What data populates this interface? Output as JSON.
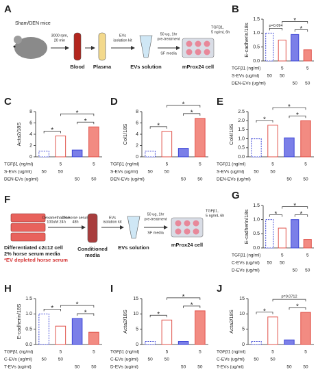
{
  "schematic_a": {
    "letter": "A",
    "mice": "Sham/DEN mice",
    "spin": [
      "3000 rpm,",
      "20 min"
    ],
    "kit": [
      "EVs",
      "isolation kit"
    ],
    "treat": [
      "50 ug, 1hr",
      "pre-treatment"
    ],
    "media": "SF media",
    "tgf": [
      "TGFβ1,",
      "5 ng/mL 6h"
    ],
    "blood": "Blood",
    "plasma": "Plasma",
    "evs": "EVs solution",
    "cell": "mProx24 cell"
  },
  "schematic_f": {
    "letter": "F",
    "cells": [
      "Differentiated c2c12 cell",
      "2% horse serum media"
    ],
    "note": "*EV depleted horse serum",
    "step1": [
      "Dexamethasone",
      "100uM 24h"
    ],
    "step2": [
      "2% horse serum",
      "48h"
    ],
    "cm": [
      "Conditioned",
      "media"
    ],
    "kit": [
      "EVs",
      "isolation kit"
    ],
    "evs": "EVs solution",
    "treat": [
      "50 ug, 1hr",
      "pre-treatment"
    ],
    "media": "SF media",
    "tgf": [
      "TGFβ1,",
      "5 ng/mL 6h"
    ],
    "cell": "mProx24 cell"
  },
  "chart_data": [
    {
      "type": "bar",
      "letter": "B",
      "ylabel": "E-cadherin/18s",
      "values": [
        1,
        0.75,
        0.95,
        0.4
      ],
      "colors": [
        "#ffffff",
        "#ffffff",
        "#7b7fe8",
        "#f28b82"
      ],
      "edges": [
        "#3b44d6",
        "#e0524a",
        "#3b44d6",
        "#e0524a"
      ],
      "ylim": [
        0,
        1.5
      ],
      "yticks": [
        {
          "value": 0,
          "label": "0.0"
        },
        {
          "value": 0.5,
          "label": "0.5"
        },
        {
          "value": 1,
          "label": "1.0"
        },
        {
          "value": 1.5,
          "label": "1.5"
        }
      ],
      "comparisons": [
        {
          "label": "p=0.094",
          "bars": [
            0,
            1
          ]
        },
        {
          "label": "*",
          "bars": [
            2,
            3
          ]
        },
        {
          "label": "*",
          "bars": [
            1,
            3
          ]
        }
      ],
      "conditions": [
        {
          "label": "TGFβ1 (ng/ml)",
          "values": [
            null,
            5,
            null,
            5
          ]
        },
        {
          "label": "S-EVs (ug/ml)",
          "values": [
            50,
            50,
            null,
            null
          ]
        },
        {
          "label": "DEN-EVs (ug/ml)",
          "values": [
            null,
            null,
            50,
            50
          ]
        }
      ]
    },
    {
      "type": "bar",
      "letter": "C",
      "ylabel": "Acta2/18S",
      "values": [
        1,
        3.7,
        1.2,
        5.3
      ],
      "colors": [
        "#ffffff",
        "#ffffff",
        "#7b7fe8",
        "#f28b82"
      ],
      "edges": [
        "#3b44d6",
        "#e0524a",
        "#3b44d6",
        "#e0524a"
      ],
      "ylim": [
        0,
        8
      ],
      "yticks": [
        0,
        2,
        4,
        6,
        8
      ],
      "comparisons": [
        {
          "label": "*",
          "bars": [
            0,
            1
          ]
        },
        {
          "label": "*",
          "bars": [
            2,
            3
          ]
        },
        {
          "label": "*",
          "bars": [
            1,
            3
          ]
        }
      ],
      "conditions": [
        {
          "label": "TGFβ1 (ng/ml)",
          "values": [
            null,
            5,
            null,
            5
          ]
        },
        {
          "label": "S-EVs (ug/ml)",
          "values": [
            50,
            50,
            null,
            null
          ]
        },
        {
          "label": "DEN-EVs (ug/ml)",
          "values": [
            null,
            null,
            50,
            50
          ]
        }
      ]
    },
    {
      "type": "bar",
      "letter": "D",
      "ylabel": "Col1/18S",
      "values": [
        1,
        4.5,
        1.5,
        6.8
      ],
      "colors": [
        "#ffffff",
        "#ffffff",
        "#7b7fe8",
        "#f28b82"
      ],
      "edges": [
        "#3b44d6",
        "#e0524a",
        "#3b44d6",
        "#e0524a"
      ],
      "ylim": [
        0,
        8
      ],
      "yticks": [
        0,
        2,
        4,
        6,
        8
      ],
      "comparisons": [
        {
          "label": "*",
          "bars": [
            0,
            1
          ]
        },
        {
          "label": "*",
          "bars": [
            2,
            3
          ]
        },
        {
          "label": "*",
          "bars": [
            1,
            3
          ]
        }
      ],
      "conditions": [
        {
          "label": "TGFβ1 (ng/ml)",
          "values": [
            null,
            5,
            null,
            5
          ]
        },
        {
          "label": "S-EVs (ug/ml)",
          "values": [
            50,
            50,
            null,
            null
          ]
        },
        {
          "label": "DEN-EVs (ug/ml)",
          "values": [
            null,
            null,
            50,
            50
          ]
        }
      ]
    },
    {
      "type": "bar",
      "letter": "E",
      "ylabel": "Col4/18S",
      "values": [
        1,
        1.75,
        1.05,
        2.0
      ],
      "colors": [
        "#ffffff",
        "#ffffff",
        "#7b7fe8",
        "#f28b82"
      ],
      "edges": [
        "#3b44d6",
        "#e0524a",
        "#3b44d6",
        "#e0524a"
      ],
      "ylim": [
        0,
        2.5
      ],
      "yticks": [
        {
          "value": 0,
          "label": "0.0"
        },
        {
          "value": 0.5,
          "label": "0.5"
        },
        {
          "value": 1,
          "label": "1.0"
        },
        {
          "value": 1.5,
          "label": "1.5"
        },
        {
          "value": 2,
          "label": "2.0"
        },
        {
          "value": 2.5,
          "label": "2.5"
        }
      ],
      "comparisons": [
        {
          "label": "*",
          "bars": [
            0,
            1
          ]
        },
        {
          "label": "*",
          "bars": [
            2,
            3
          ]
        },
        {
          "label": "*",
          "bars": [
            1,
            3
          ]
        }
      ],
      "conditions": [
        {
          "label": "TGFβ1 (ng/ml)",
          "values": [
            null,
            5,
            null,
            5
          ]
        },
        {
          "label": "S-EVs (ug/ml)",
          "values": [
            50,
            50,
            null,
            null
          ]
        },
        {
          "label": "DEN-EVs (ug/ml)",
          "values": [
            null,
            null,
            50,
            50
          ]
        }
      ]
    },
    {
      "type": "bar",
      "letter": "G",
      "ylabel": "E-cadherin/18s",
      "values": [
        1,
        0.7,
        1.0,
        0.3
      ],
      "colors": [
        "#ffffff",
        "#ffffff",
        "#7b7fe8",
        "#f28b82"
      ],
      "edges": [
        "#3b44d6",
        "#e0524a",
        "#3b44d6",
        "#e0524a"
      ],
      "ylim": [
        0,
        1.5
      ],
      "yticks": [
        {
          "value": 0,
          "label": "0.0"
        },
        {
          "value": 0.5,
          "label": "0.5"
        },
        {
          "value": 1,
          "label": "1.0"
        },
        {
          "value": 1.5,
          "label": "1.5"
        }
      ],
      "comparisons": [
        {
          "label": "*",
          "bars": [
            0,
            1
          ]
        },
        {
          "label": "*",
          "bars": [
            2,
            3
          ]
        },
        {
          "label": "*",
          "bars": [
            1,
            3
          ]
        }
      ],
      "conditions": [
        {
          "label": "TGFβ1 (ng/ml)",
          "values": [
            null,
            5,
            null,
            5
          ]
        },
        {
          "label": "C-EVs (ug/ml)",
          "values": [
            50,
            50,
            null,
            null
          ]
        },
        {
          "label": "D-EVs (ug/ml)",
          "values": [
            null,
            null,
            50,
            50
          ]
        }
      ]
    },
    {
      "type": "bar",
      "letter": "H",
      "ylabel": "E-cadherin/18S",
      "values": [
        1,
        0.6,
        0.85,
        0.4
      ],
      "colors": [
        "#ffffff",
        "#ffffff",
        "#7b7fe8",
        "#f28b82"
      ],
      "edges": [
        "#3b44d6",
        "#e0524a",
        "#3b44d6",
        "#e0524a"
      ],
      "ylim": [
        0,
        1.5
      ],
      "yticks": [
        {
          "value": 0,
          "label": "0.0"
        },
        {
          "value": 0.5,
          "label": "0.5"
        },
        {
          "value": 1,
          "label": "1.0"
        },
        {
          "value": 1.5,
          "label": "1.5"
        }
      ],
      "comparisons": [
        {
          "label": "*",
          "bars": [
            0,
            1
          ]
        },
        {
          "label": "*",
          "bars": [
            2,
            3
          ]
        },
        {
          "label": "*",
          "bars": [
            1,
            3
          ]
        }
      ],
      "conditions": [
        {
          "label": "TGFβ1 (ng/ml)",
          "values": [
            null,
            5,
            null,
            5
          ]
        },
        {
          "label": "C-EVs (ug/ml)",
          "values": [
            50,
            50,
            null,
            null
          ]
        },
        {
          "label": "T-EVs (ug/ml)",
          "values": [
            null,
            null,
            50,
            50
          ]
        }
      ]
    },
    {
      "type": "bar",
      "letter": "I",
      "ylabel": "Acta2/18S",
      "values": [
        1,
        8,
        1,
        11
      ],
      "colors": [
        "#ffffff",
        "#ffffff",
        "#7b7fe8",
        "#f28b82"
      ],
      "edges": [
        "#3b44d6",
        "#e0524a",
        "#3b44d6",
        "#e0524a"
      ],
      "ylim": [
        0,
        15
      ],
      "yticks": [
        0,
        5,
        10,
        15
      ],
      "comparisons": [
        {
          "label": "*",
          "bars": [
            0,
            1
          ]
        },
        {
          "label": "*",
          "bars": [
            2,
            3
          ]
        },
        {
          "label": "*",
          "bars": [
            1,
            3
          ]
        }
      ],
      "conditions": [
        {
          "label": "TGFβ1 (ng/ml)",
          "values": [
            null,
            5,
            null,
            5
          ]
        },
        {
          "label": "C-EVs (ug/ml)",
          "values": [
            50,
            50,
            null,
            null
          ]
        },
        {
          "label": "D-EVs (ug/ml)",
          "values": [
            null,
            null,
            50,
            50
          ]
        }
      ]
    },
    {
      "type": "bar",
      "letter": "J",
      "ylabel": "Acta2/18S",
      "values": [
        1,
        9,
        1.5,
        10.5
      ],
      "colors": [
        "#ffffff",
        "#ffffff",
        "#7b7fe8",
        "#f28b82"
      ],
      "edges": [
        "#3b44d6",
        "#e0524a",
        "#3b44d6",
        "#e0524a"
      ],
      "ylim": [
        0,
        15
      ],
      "yticks": [
        0,
        5,
        10,
        15
      ],
      "comparisons": [
        {
          "label": "*",
          "bars": [
            0,
            1
          ]
        },
        {
          "label": "*",
          "bars": [
            2,
            3
          ]
        },
        {
          "label": "p=0.0712",
          "bars": [
            1,
            3
          ]
        }
      ],
      "conditions": [
        {
          "label": "TGFβ1 (ng/ml)",
          "values": [
            null,
            5,
            null,
            5
          ]
        },
        {
          "label": "C-EVs (ug/ml)",
          "values": [
            50,
            50,
            null,
            null
          ]
        },
        {
          "label": "T-EVs (ug/ml)",
          "values": [
            null,
            null,
            50,
            50
          ]
        }
      ]
    }
  ]
}
